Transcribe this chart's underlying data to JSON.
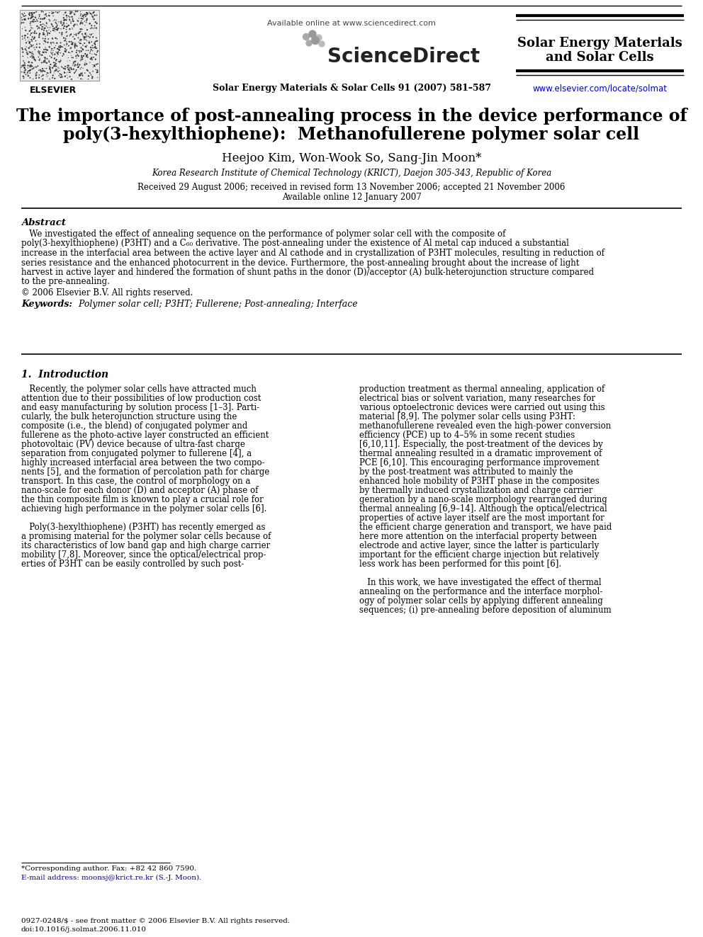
{
  "page_bg": "#ffffff",
  "elsevier_label": "ELSEVIER",
  "available_online": "Available online at www.sciencedirect.com",
  "sciencedirect": "ScienceDirect",
  "journal_name_center": "Solar Energy Materials & Solar Cells 91 (2007) 581–587",
  "journal_name_right_line1": "Solar Energy Materials",
  "journal_name_right_line2": "and Solar Cells",
  "url_right": "www.elsevier.com/locate/solmat",
  "title_line1": "The importance of post-annealing process in the device performance of",
  "title_line2": "poly(3-hexylthiophene):  Methanofullerene polymer solar cell",
  "authors": "Heejoo Kim, Won-Wook So, Sang-Jin Moon*",
  "affiliation": "Korea Research Institute of Chemical Technology (KRICT), Daejon 305-343, Republic of Korea",
  "received": "Received 29 August 2006; received in revised form 13 November 2006; accepted 21 November 2006",
  "available": "Available online 12 January 2007",
  "abstract_title": "Abstract",
  "abstract_lines": [
    "   We investigated the effect of annealing sequence on the performance of polymer solar cell with the composite of",
    "poly(3-hexylthiophene) (P3HT) and a C₆₀ derivative. The post-annealing under the existence of Al metal cap induced a substantial",
    "increase in the interfacial area between the active layer and Al cathode and in crystallization of P3HT molecules, resulting in reduction of",
    "series resistance and the enhanced photocurrent in the device. Furthermore, the post-annealing brought about the increase of light",
    "harvest in active layer and hindered the formation of shunt paths in the donor (D)/acceptor (A) bulk-heterojunction structure compared",
    "to the pre-annealing."
  ],
  "copyright": "© 2006 Elsevier B.V. All rights reserved.",
  "keywords_label": "Keywords:",
  "keywords_text": " Polymer solar cell; P3HT; Fullerene; Post-annealing; Interface",
  "section1_title": "1.  Introduction",
  "col1_lines": [
    "   Recently, the polymer solar cells have attracted much",
    "attention due to their possibilities of low production cost",
    "and easy manufacturing by solution process [1–3]. Parti-",
    "cularly, the bulk heterojunction structure using the",
    "composite (i.e., the blend) of conjugated polymer and",
    "fullerene as the photo-active layer constructed an efficient",
    "photovoltaic (PV) device because of ultra-fast charge",
    "separation from conjugated polymer to fullerene [4], a",
    "highly increased interfacial area between the two compo-",
    "nents [5], and the formation of percolation path for charge",
    "transport. In this case, the control of morphology on a",
    "nano-scale for each donor (D) and acceptor (A) phase of",
    "the thin composite film is known to play a crucial role for",
    "achieving high performance in the polymer solar cells [6].",
    "",
    "   Poly(3-hexylthiophene) (P3HT) has recently emerged as",
    "a promising material for the polymer solar cells because of",
    "its characteristics of low band gap and high charge carrier",
    "mobility [7,8]. Moreover, since the optical/electrical prop-",
    "erties of P3HT can be easily controlled by such post-"
  ],
  "col2_lines": [
    "production treatment as thermal annealing, application of",
    "electrical bias or solvent variation, many researches for",
    "various optoelectronic devices were carried out using this",
    "material [8,9]. The polymer solar cells using P3HT:",
    "methanofullerene revealed even the high-power conversion",
    "efficiency (PCE) up to 4–5% in some recent studies",
    "[6,10,11]. Especially, the post-treatment of the devices by",
    "thermal annealing resulted in a dramatic improvement of",
    "PCE [6,10]. This encouraging performance improvement",
    "by the post-treatment was attributed to mainly the",
    "enhanced hole mobility of P3HT phase in the composites",
    "by thermally induced crystallization and charge carrier",
    "generation by a nano-scale morphology rearranged during",
    "thermal annealing [6,9–14]. Although the optical/electrical",
    "properties of active layer itself are the most important for",
    "the efficient charge generation and transport, we have paid",
    "here more attention on the interfacial property between",
    "electrode and active layer, since the latter is particularly",
    "important for the efficient charge injection but relatively",
    "less work has been performed for this point [6].",
    "",
    "   In this work, we have investigated the effect of thermal",
    "annealing on the performance and the interface morphol-",
    "ogy of polymer solar cells by applying different annealing",
    "sequences; (i) pre-annealing before deposition of aluminum"
  ],
  "footnote_star": "*Corresponding author. Fax: +82 42 860 7590.",
  "footnote_email": "E-mail address: moonsj@krict.re.kr (S.-J. Moon).",
  "footer_issn": "0927-0248/$ - see front matter © 2006 Elsevier B.V. All rights reserved.",
  "footer_doi": "doi:10.1016/j.solmat.2006.11.010"
}
